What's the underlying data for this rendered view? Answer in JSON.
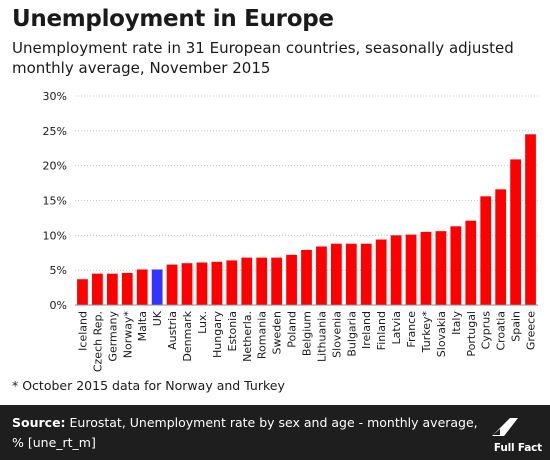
{
  "header": {
    "title": "Unemployment in Europe",
    "subtitle": "Unemployment rate in 31 European countries, seasonally adjusted monthly average, November 2015"
  },
  "footnote": "* October 2015 data for Norway and Turkey",
  "source": {
    "label": "Source:",
    "text": "Eurostat, Unemployment rate by sex and age - monthly average, % [une_rt_m]"
  },
  "brand": "Full Fact",
  "colors": {
    "bar": "#ff0000",
    "highlight": "#3333ff",
    "grid": "#bbbbbb",
    "text": "#1a1a1a",
    "footer_bg": "#1e1e1e"
  },
  "chart_data": {
    "type": "bar",
    "categories": [
      "Iceland",
      "Czech Rep.",
      "Germany",
      "Norway*",
      "Malta",
      "UK",
      "Austria",
      "Denmark",
      "Lux.",
      "Hungary",
      "Estonia",
      "Netherla.",
      "Romania",
      "Sweden",
      "Poland",
      "Belgium",
      "Lithuania",
      "Slovenia",
      "Bulgaria",
      "Ireland",
      "Finland",
      "Latvia",
      "France",
      "Turkey*",
      "Slovakia",
      "Italy",
      "Portugal",
      "Cyprus",
      "Croatia",
      "Spain",
      "Greece"
    ],
    "values": [
      3.7,
      4.5,
      4.5,
      4.6,
      5.1,
      5.1,
      5.8,
      6.0,
      6.1,
      6.2,
      6.4,
      6.8,
      6.8,
      6.8,
      7.2,
      7.9,
      8.4,
      8.8,
      8.8,
      8.8,
      9.4,
      10.0,
      10.1,
      10.5,
      10.6,
      11.3,
      12.1,
      15.6,
      16.6,
      20.9,
      24.5
    ],
    "highlight": "UK",
    "ylim": [
      0,
      30
    ],
    "yticks": [
      0,
      5,
      10,
      15,
      20,
      25,
      30
    ],
    "ytick_format": "%",
    "grid": true,
    "xlabel": "",
    "ylabel": ""
  }
}
